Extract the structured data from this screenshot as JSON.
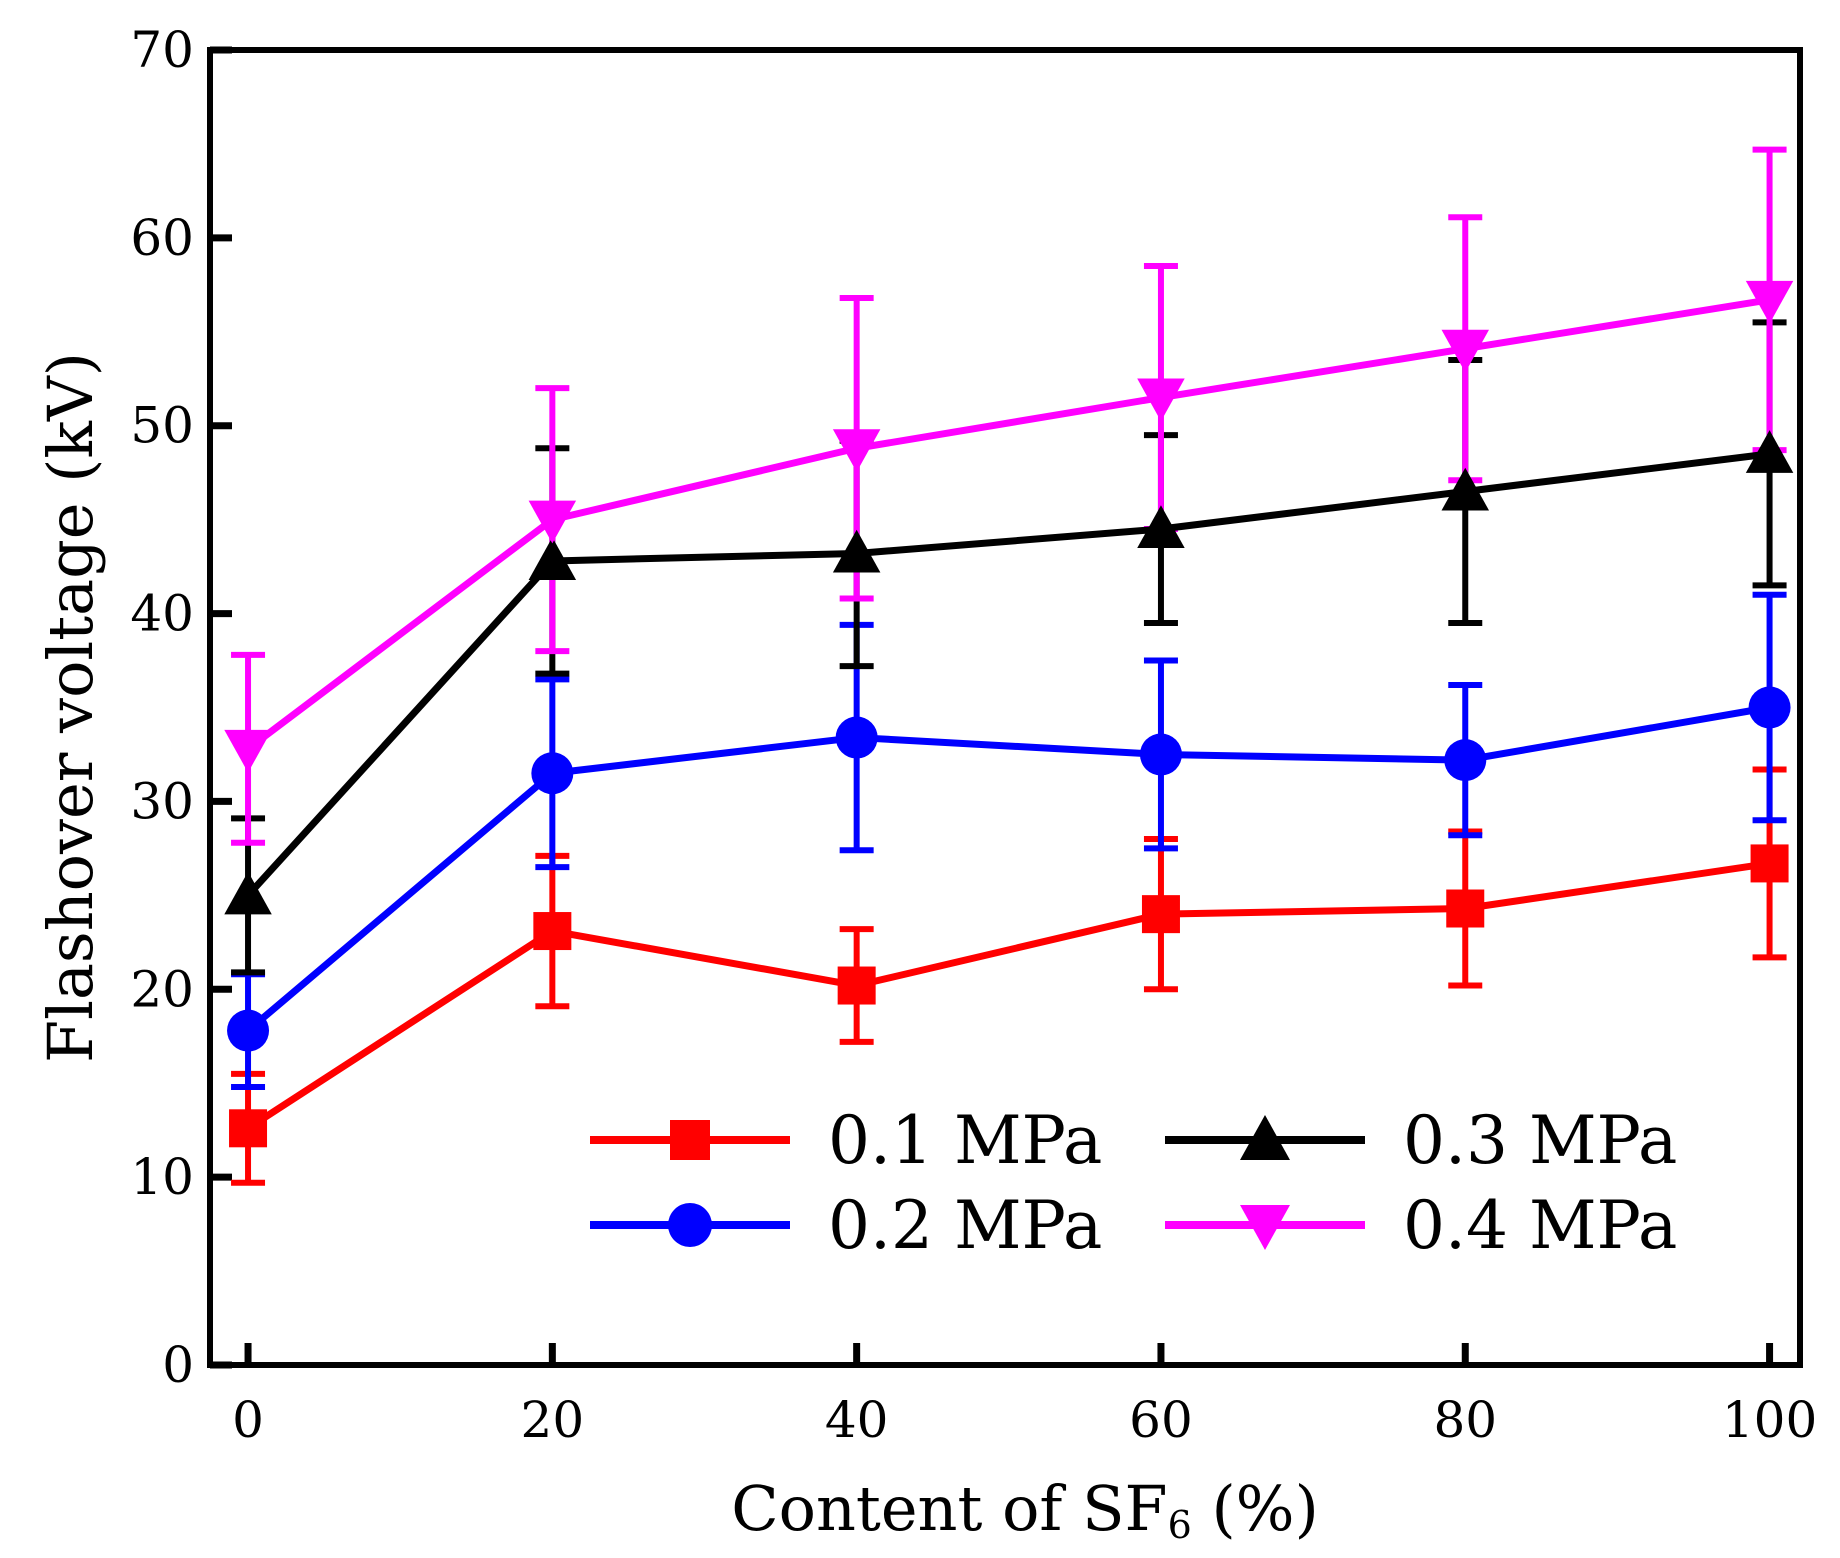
{
  "chart_data": {
    "type": "line",
    "title": "",
    "xlabel": "Content of SF",
    "xlabel_subscript": "6",
    "xlabel_suffix": " (%)",
    "ylabel": "Flashover voltage (kV)",
    "xlim": [
      -2.5,
      102
    ],
    "ylim": [
      0,
      70
    ],
    "x_ticks": [
      0,
      20,
      40,
      60,
      80,
      100
    ],
    "y_ticks": [
      0,
      10,
      20,
      30,
      40,
      50,
      60,
      70
    ],
    "legend_position": "lower-right",
    "x": [
      0,
      20,
      40,
      60,
      80,
      100
    ],
    "series": [
      {
        "name": "0.1 MPa",
        "color": "#ff0000",
        "marker": "square",
        "values": [
          12.6,
          23.1,
          20.2,
          24.0,
          24.3,
          26.7
        ],
        "err_low": [
          2.9,
          4.0,
          3.0,
          4.0,
          4.1,
          5.0
        ],
        "err_high": [
          2.9,
          4.0,
          3.0,
          4.0,
          4.1,
          5.0
        ]
      },
      {
        "name": "0.2 MPa",
        "color": "#0000ff",
        "marker": "circle",
        "values": [
          17.8,
          31.5,
          33.4,
          32.5,
          32.2,
          35.0
        ],
        "err_low": [
          3.0,
          5.0,
          6.0,
          5.0,
          4.0,
          6.0
        ],
        "err_high": [
          3.0,
          5.0,
          6.0,
          5.0,
          4.0,
          6.0
        ]
      },
      {
        "name": "0.3 MPa",
        "color": "#000000",
        "marker": "triangle-up",
        "values": [
          25.0,
          42.8,
          43.2,
          44.5,
          46.5,
          48.5
        ],
        "err_low": [
          4.1,
          6.0,
          6.0,
          5.0,
          7.0,
          7.0
        ],
        "err_high": [
          4.1,
          6.0,
          6.0,
          5.0,
          7.0,
          7.0
        ]
      },
      {
        "name": "0.4 MPa",
        "color": "#ff00ff",
        "marker": "triangle-down",
        "values": [
          32.8,
          45.0,
          48.8,
          51.5,
          54.1,
          56.7
        ],
        "err_low": [
          5.0,
          7.0,
          8.0,
          7.0,
          7.0,
          8.0
        ],
        "err_high": [
          5.0,
          7.0,
          8.0,
          7.0,
          7.0,
          8.0
        ]
      }
    ]
  }
}
